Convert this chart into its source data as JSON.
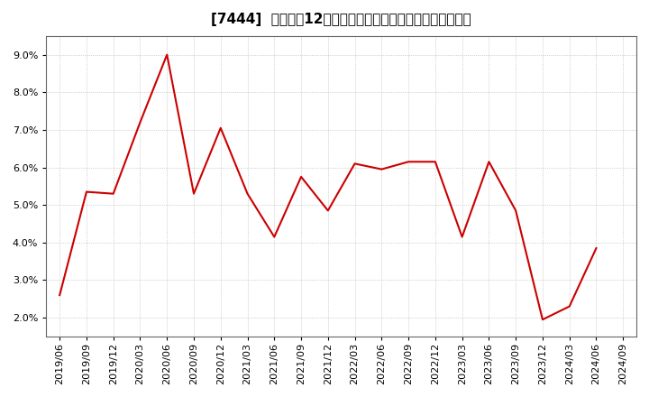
{
  "title": "[7444]  売上高の12か月移動合計の対前年同期増減率の推移",
  "line_color": "#cc0000",
  "background_color": "#ffffff",
  "plot_bg_color": "#ffffff",
  "grid_color": "#b0b0b0",
  "xlabels": [
    "2019/06",
    "2019/09",
    "2019/12",
    "2020/03",
    "2020/06",
    "2020/09",
    "2020/12",
    "2021/03",
    "2021/06",
    "2021/09",
    "2021/12",
    "2022/03",
    "2022/06",
    "2022/09",
    "2022/12",
    "2023/03",
    "2023/06",
    "2023/09",
    "2023/12",
    "2024/03",
    "2024/06",
    "2024/09"
  ],
  "values": [
    2.6,
    5.35,
    5.3,
    7.2,
    9.0,
    5.3,
    7.05,
    5.3,
    4.15,
    5.75,
    4.85,
    6.1,
    5.95,
    6.15,
    6.15,
    4.15,
    6.15,
    4.85,
    1.95,
    2.3,
    3.85,
    null
  ],
  "ylim": [
    1.5,
    9.5
  ],
  "yticks": [
    2.0,
    3.0,
    4.0,
    5.0,
    6.0,
    7.0,
    8.0,
    9.0
  ],
  "title_fontsize": 11,
  "tick_fontsize": 8
}
